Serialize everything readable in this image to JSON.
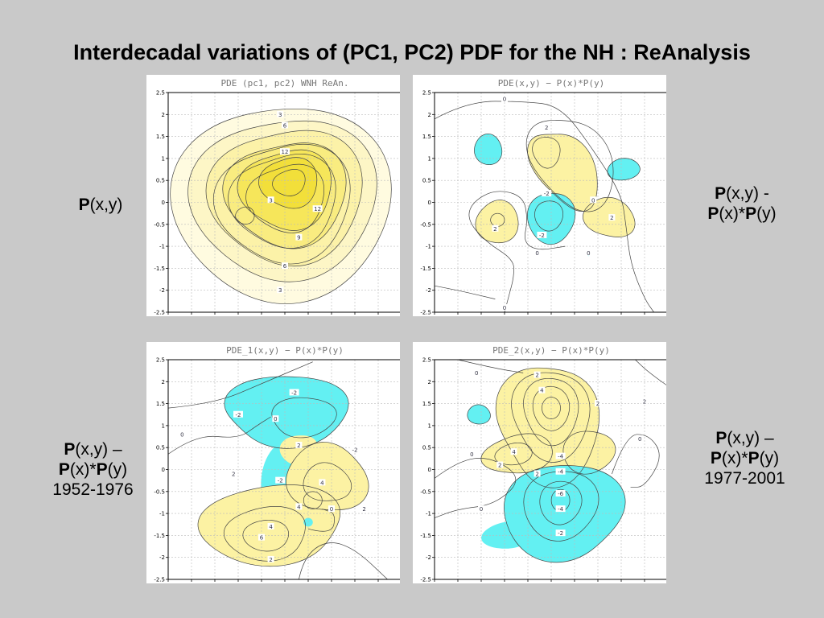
{
  "title": "Interdecadal variations of (PC1, PC2) PDF for the NH : ReAnalysis",
  "colors": {
    "background": "#c9c9c9",
    "positive_fill": "#fcf2a3",
    "negative_fill": "#63f0f2",
    "contour": "#444444",
    "grid": "#bbbbbb"
  },
  "side_labels": {
    "top_left": {
      "l1_bold": "P",
      "l1_rest": "(x,y)"
    },
    "top_right": {
      "l1_bold": "P",
      "l1_rest": "(x,y) -",
      "l2_b1": "P",
      "l2_m": "(x)*",
      "l2_b2": "P",
      "l2_r": "(y)"
    },
    "bottom_left": {
      "l1_bold": "P",
      "l1_rest": "(x,y) –",
      "l2_b1": "P",
      "l2_m": "(x)*",
      "l2_b2": "P",
      "l2_r": "(y)",
      "l3": "1952-1976"
    },
    "bottom_right": {
      "l1_bold": "P",
      "l1_rest": "(x,y) –",
      "l2_b1": "P",
      "l2_m": "(x)*",
      "l2_b2": "P",
      "l2_r": "(y)",
      "l3": "1977-2001"
    }
  },
  "chart_data": [
    {
      "type": "contour",
      "title": "PDE (pc1, pc2) WNH  ReAn.",
      "xlim": [
        -2.5,
        2.5
      ],
      "ylim": [
        -2.5,
        2.5
      ],
      "xticks": [
        "-2.5",
        "-2",
        "-1.5",
        "-1",
        "-0.5",
        "0",
        "0.5",
        "1",
        "1.5",
        "2",
        "2.5"
      ],
      "yticks": [
        "2.5",
        "2",
        "1.5",
        "1",
        "0.5",
        "0",
        "-0.5",
        "-1",
        "-1.5",
        "-2",
        "-2.5"
      ],
      "grid": true,
      "contour_labels": [
        {
          "text": "3",
          "x": -0.1,
          "y": 2.0
        },
        {
          "text": "6",
          "x": 0.0,
          "y": 1.75
        },
        {
          "text": "12",
          "x": 0.0,
          "y": 1.15
        },
        {
          "text": "3",
          "x": -0.3,
          "y": 0.05
        },
        {
          "text": "12",
          "x": 0.7,
          "y": -0.15
        },
        {
          "text": "9",
          "x": 0.3,
          "y": -0.8
        },
        {
          "text": "6",
          "x": 0.0,
          "y": -1.45
        },
        {
          "text": "3",
          "x": -0.1,
          "y": -2.0
        }
      ]
    },
    {
      "type": "contour",
      "title": "PDE(x,y) − P(x)*P(y)",
      "xlim": [
        -2.5,
        2.5
      ],
      "ylim": [
        -2.5,
        2.5
      ],
      "xticks": [
        "-2.5",
        "-2",
        "-1.5",
        "-1",
        "-0.5",
        "0",
        "0.5",
        "1",
        "1.5",
        "2",
        "2.5"
      ],
      "yticks": [
        "2.5",
        "2",
        "1.5",
        "1",
        "0.5",
        "0",
        "-0.5",
        "-1",
        "-1.5",
        "-2",
        "-2.5"
      ],
      "grid": true,
      "contour_labels": [
        {
          "text": "0",
          "x": -1.0,
          "y": 2.35
        },
        {
          "text": "2",
          "x": -0.1,
          "y": 1.7
        },
        {
          "text": "-2",
          "x": -0.1,
          "y": 0.2
        },
        {
          "text": "0",
          "x": 0.9,
          "y": 0.05
        },
        {
          "text": "2",
          "x": 1.3,
          "y": -0.35
        },
        {
          "text": "2",
          "x": -1.2,
          "y": -0.6
        },
        {
          "text": "-2",
          "x": -0.2,
          "y": -0.75
        },
        {
          "text": "0",
          "x": -0.3,
          "y": -1.15
        },
        {
          "text": "0",
          "x": 0.8,
          "y": -1.15
        },
        {
          "text": "0",
          "x": -1.0,
          "y": -2.4
        }
      ]
    },
    {
      "type": "contour",
      "title": "PDE_1(x,y) − P(x)*P(y)",
      "xlim": [
        -2.5,
        2.5
      ],
      "ylim": [
        -2.5,
        2.5
      ],
      "xticks": [
        "-2.5",
        "-2",
        "-1.5",
        "-1",
        "-0.5",
        "0",
        "0.5",
        "1",
        "1.5",
        "2",
        "2.5"
      ],
      "yticks": [
        "2.5",
        "2",
        "1.5",
        "1",
        "0.5",
        "0",
        "-0.5",
        "-1",
        "-1.5",
        "-2",
        "-2.5"
      ],
      "grid": true,
      "contour_labels": [
        {
          "text": "-2",
          "x": 0.2,
          "y": 1.75
        },
        {
          "text": "-2",
          "x": -1.0,
          "y": 1.25
        },
        {
          "text": "0",
          "x": -2.2,
          "y": 0.8
        },
        {
          "text": "0",
          "x": -0.2,
          "y": 1.15
        },
        {
          "text": "2",
          "x": 0.3,
          "y": 0.55
        },
        {
          "text": "-2",
          "x": 1.5,
          "y": 0.45
        },
        {
          "text": "2",
          "x": -1.1,
          "y": -0.1
        },
        {
          "text": "-2",
          "x": -0.1,
          "y": -0.25
        },
        {
          "text": "4",
          "x": 0.8,
          "y": -0.3
        },
        {
          "text": "4",
          "x": 0.3,
          "y": -0.85
        },
        {
          "text": "0",
          "x": 1.0,
          "y": -0.9
        },
        {
          "text": "2",
          "x": 1.7,
          "y": -0.9
        },
        {
          "text": "4",
          "x": -0.3,
          "y": -1.3
        },
        {
          "text": "6",
          "x": -0.5,
          "y": -1.55
        },
        {
          "text": "2",
          "x": -0.3,
          "y": -2.05
        }
      ]
    },
    {
      "type": "contour",
      "title": "PDE_2(x,y) − P(x)*P(y)",
      "xlim": [
        -2.5,
        2.5
      ],
      "ylim": [
        -2.5,
        2.5
      ],
      "xticks": [
        "-2.5",
        "-2",
        "-1.5",
        "-1",
        "-0.5",
        "0",
        "0.5",
        "1",
        "1.5",
        "2",
        "2.5"
      ],
      "yticks": [
        "2.5",
        "2",
        "1.5",
        "1",
        "0.5",
        "0",
        "-0.5",
        "-1",
        "-1.5",
        "-2",
        "-2.5"
      ],
      "grid": true,
      "contour_labels": [
        {
          "text": "0",
          "x": -1.6,
          "y": 2.2
        },
        {
          "text": "2",
          "x": -0.3,
          "y": 2.15
        },
        {
          "text": "4",
          "x": -0.2,
          "y": 1.8
        },
        {
          "text": "2",
          "x": 1.0,
          "y": 1.5
        },
        {
          "text": "2",
          "x": 2.0,
          "y": 1.55
        },
        {
          "text": "0",
          "x": -1.7,
          "y": 0.35
        },
        {
          "text": "4",
          "x": -0.8,
          "y": 0.4
        },
        {
          "text": "2",
          "x": -1.1,
          "y": 0.1
        },
        {
          "text": "2",
          "x": -0.3,
          "y": -0.1
        },
        {
          "text": "0",
          "x": 1.9,
          "y": 0.7
        },
        {
          "text": "-4",
          "x": 0.2,
          "y": 0.3
        },
        {
          "text": "-4",
          "x": 0.2,
          "y": -0.05
        },
        {
          "text": "0",
          "x": -1.5,
          "y": -0.9
        },
        {
          "text": "-6",
          "x": 0.2,
          "y": -0.55
        },
        {
          "text": "-4",
          "x": 0.2,
          "y": -0.9
        },
        {
          "text": "-2",
          "x": 0.2,
          "y": -1.45
        }
      ]
    }
  ]
}
